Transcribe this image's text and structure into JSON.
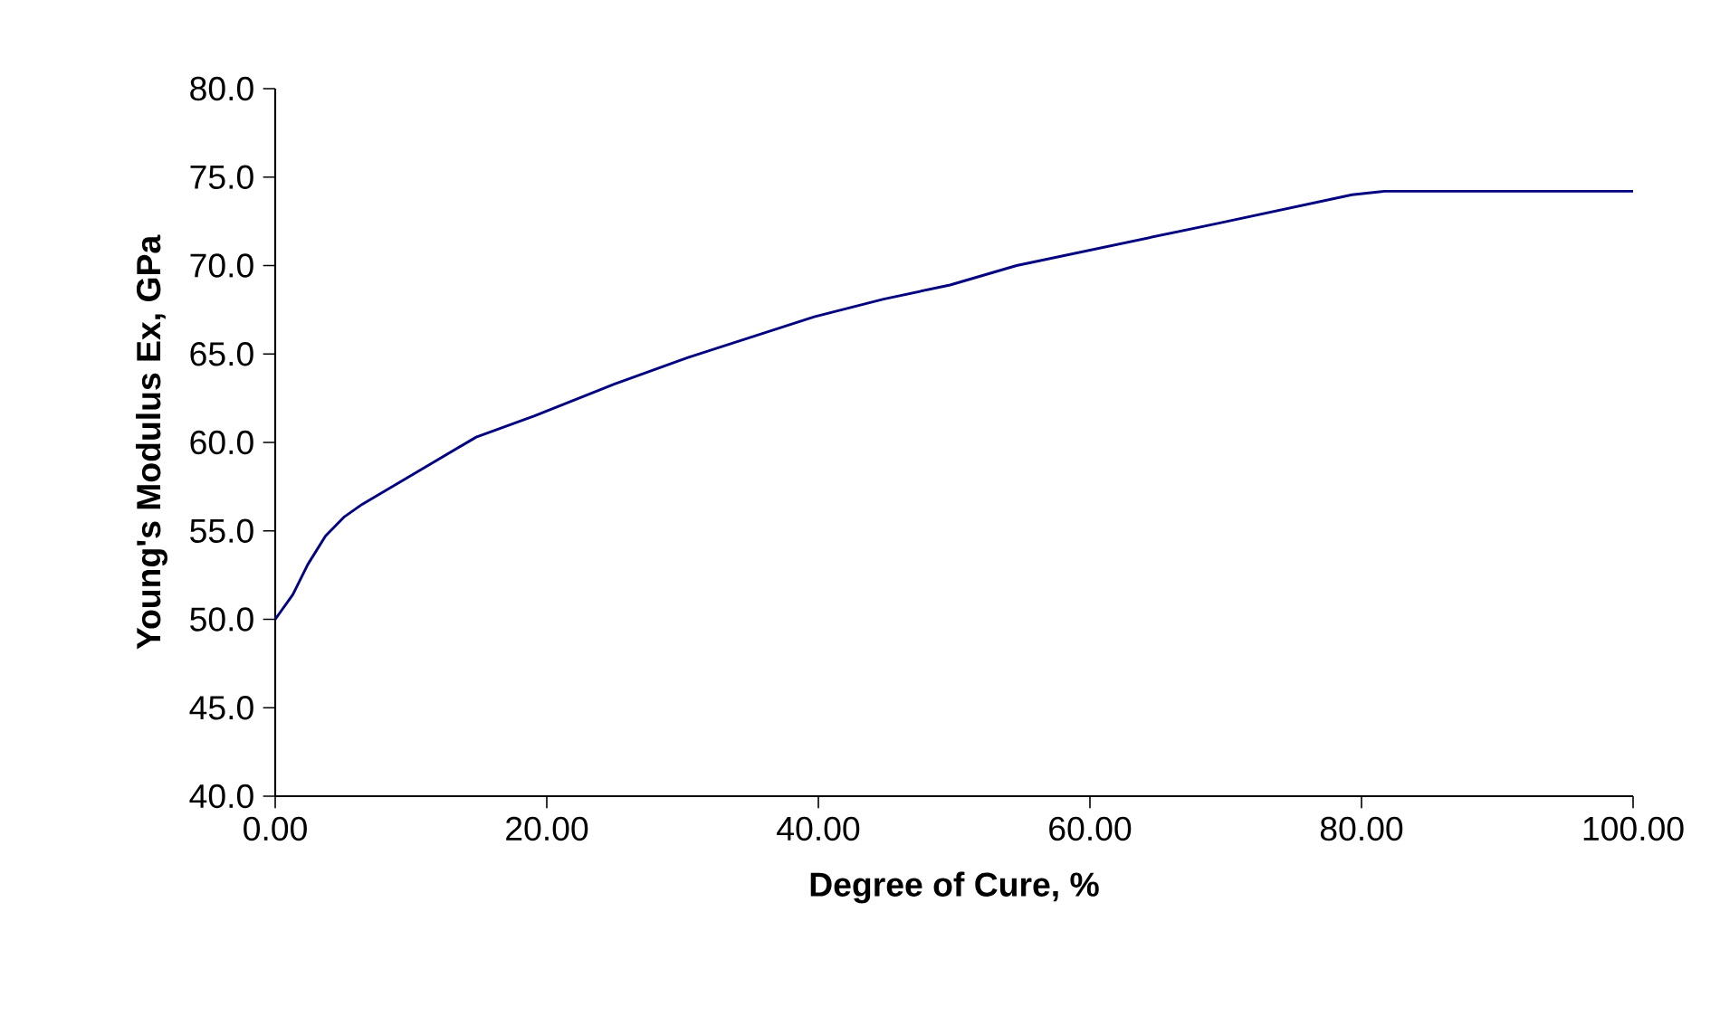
{
  "chart_data": {
    "type": "line",
    "xlabel": "Degree of Cure, %",
    "ylabel": "Young's Modulus Ex, GPa",
    "color": "#000080",
    "x": [
      0,
      1.3,
      2.4,
      3.7,
      5.1,
      6.4,
      14.8,
      19.1,
      25,
      30.4,
      39.7,
      44.8,
      49.7,
      54.6,
      69.5,
      79.3,
      81.7,
      100
    ],
    "values": [
      50.0,
      51.4,
      53.1,
      54.7,
      55.8,
      56.5,
      60.3,
      61.5,
      63.3,
      64.8,
      67.1,
      68.1,
      68.9,
      70.0,
      72.4,
      74.0,
      74.2,
      74.2
    ],
    "xlim": [
      0,
      100
    ],
    "ylim": [
      40,
      80
    ],
    "xticks": [
      {
        "value": 0,
        "label": "0.00"
      },
      {
        "value": 20,
        "label": "20.00"
      },
      {
        "value": 40,
        "label": "40.00"
      },
      {
        "value": 60,
        "label": "60.00"
      },
      {
        "value": 80,
        "label": "80.00"
      },
      {
        "value": 100,
        "label": "100.00"
      }
    ],
    "yticks": [
      {
        "value": 40,
        "label": "40.0"
      },
      {
        "value": 45,
        "label": "45.0"
      },
      {
        "value": 50,
        "label": "50.0"
      },
      {
        "value": 55,
        "label": "55.0"
      },
      {
        "value": 60,
        "label": "60.0"
      },
      {
        "value": 65,
        "label": "65.0"
      },
      {
        "value": 70,
        "label": "70.0"
      },
      {
        "value": 75,
        "label": "75.0"
      },
      {
        "value": 80,
        "label": "80.0"
      }
    ]
  }
}
